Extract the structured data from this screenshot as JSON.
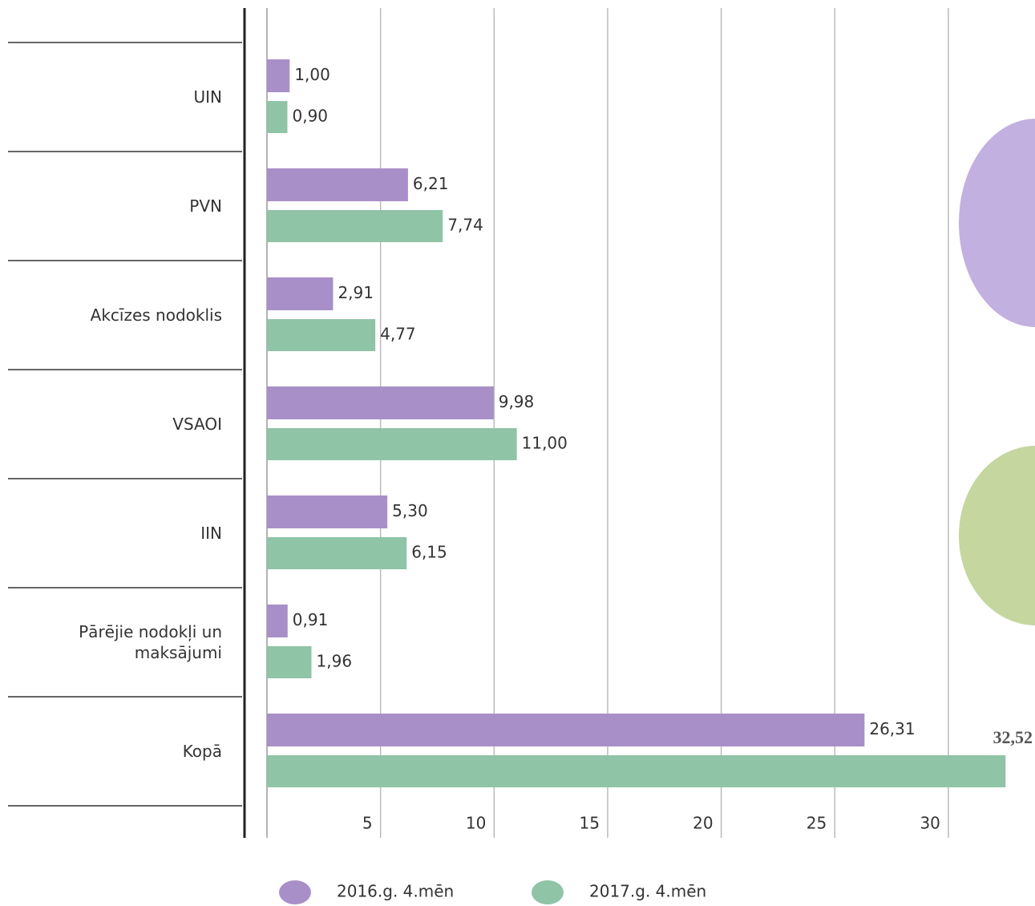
{
  "chart_data": {
    "type": "bar",
    "orientation": "horizontal",
    "categories": [
      "UIN",
      "PVN",
      "Akcīzes nodoklis",
      "VSAOI",
      "IIN",
      "Pārējie nodokļi un\nmaksājumi",
      "Kopā"
    ],
    "series": [
      {
        "name": "2016.g. 4.mēn",
        "color": "#a98fc8",
        "values": [
          1.0,
          6.21,
          2.91,
          9.98,
          5.3,
          0.91,
          26.31
        ],
        "value_labels": [
          "1,00",
          "6,21",
          "2,91",
          "9,98",
          "5,30",
          "0,91",
          "26,31"
        ]
      },
      {
        "name": "2017.g. 4.mēn",
        "color": "#8fc4a6",
        "values": [
          0.9,
          7.74,
          4.77,
          11.0,
          6.15,
          1.96,
          32.52
        ],
        "value_labels": [
          "0,90",
          "7,74",
          "4,77",
          "11,00",
          "6,15",
          "1,96",
          "32,52"
        ]
      }
    ],
    "xlim": [
      0,
      33
    ],
    "xticks": [
      5,
      10,
      15,
      20,
      25,
      30
    ],
    "grid": true,
    "legend": "bottom"
  }
}
